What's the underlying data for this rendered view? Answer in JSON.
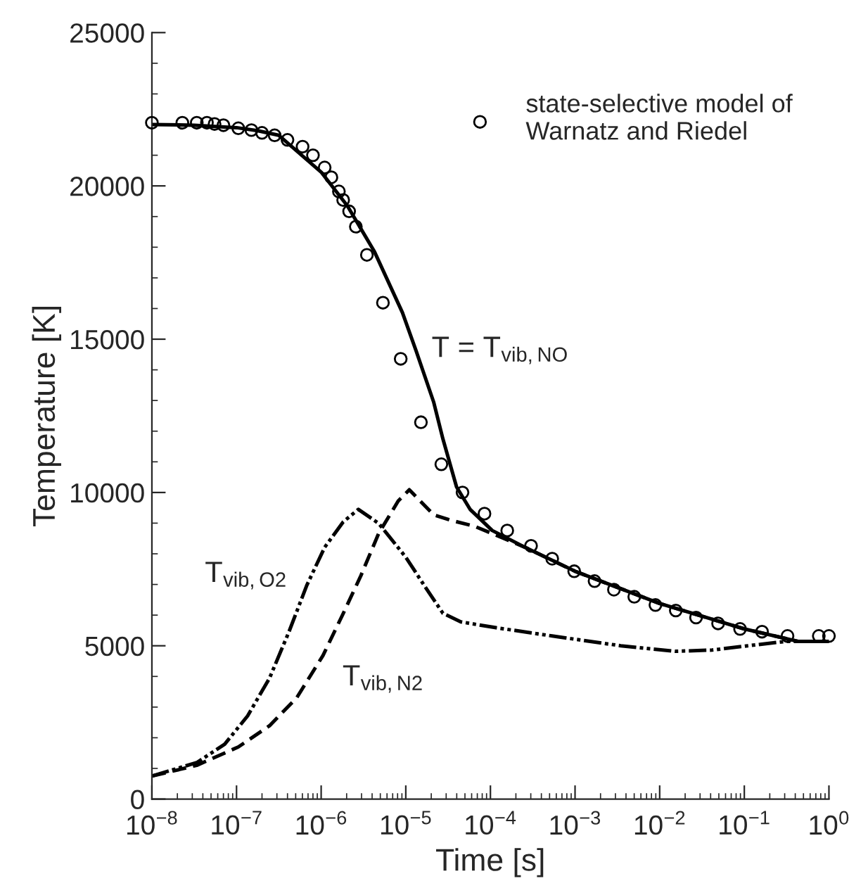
{
  "chart_data": {
    "type": "line",
    "xlabel": "Time [s]",
    "ylabel": "Temperature [K]",
    "log": "x",
    "xlim": [
      1e-08,
      1
    ],
    "ylim": [
      0,
      25000
    ],
    "xticks": [
      {
        "value": 1e-08,
        "label": "10$^{−8}$"
      },
      {
        "value": 1e-07,
        "label": "10$^{−7}$"
      },
      {
        "value": 1e-06,
        "label": "10$^{−6}$"
      },
      {
        "value": 1e-05,
        "label": "10$^{−5}$"
      },
      {
        "value": 0.0001,
        "label": "10$^{−4}$"
      },
      {
        "value": 0.001,
        "label": "10$^{−3}$"
      },
      {
        "value": 0.01,
        "label": "10$^{−2}$"
      },
      {
        "value": 0.1,
        "label": "10$^{−1}$"
      },
      {
        "value": 1,
        "label": "10$^{0}$"
      }
    ],
    "yticks": [
      0,
      5000,
      10000,
      15000,
      20000,
      25000
    ],
    "grid": false,
    "legend": "top right",
    "series": [
      {
        "name": "T = T$_{vib,NO}$",
        "color": "#000000",
        "line_style": "solid",
        "marker": "none",
        "x": [
          1e-08,
          3.16e-08,
          1e-07,
          1.78e-07,
          3.16e-07,
          1e-06,
          2.04e-06,
          4.27e-06,
          9.12e-06,
          1.32e-05,
          2.14e-05,
          2.75e-05,
          3.98e-05,
          5.75e-05,
          0.000105,
          0.000257,
          0.001,
          0.01,
          0.1,
          0.437,
          1
        ],
        "values": [
          22000,
          21980,
          21900,
          21800,
          21650,
          20450,
          19350,
          17850,
          15870,
          14630,
          12940,
          11740,
          10180,
          9450,
          8760,
          8210,
          7430,
          6380,
          5550,
          5140,
          5140
        ]
      },
      {
        "name": "T$_{vib,O2}$",
        "color": "#000000",
        "line_style": "dotted",
        "marker": "none",
        "x": [
          1e-08,
          3.39e-08,
          7.24e-08,
          1.35e-07,
          2.45e-07,
          4.17e-07,
          6.76e-07,
          1.1e-06,
          1.82e-06,
          2.75e-06,
          4.79e-06,
          1e-05,
          1.78e-05,
          2.75e-05,
          4.47e-05,
          0.00011,
          0.000537,
          0.00347,
          0.0155,
          0.0417,
          0.11,
          0.302,
          1
        ],
        "values": [
          750,
          1190,
          1790,
          2710,
          3940,
          5460,
          6970,
          8210,
          9040,
          9450,
          8990,
          7890,
          6830,
          6060,
          5780,
          5600,
          5320,
          5000,
          4820,
          4860,
          5000,
          5140,
          5140
        ]
      },
      {
        "name": "T$_{vib,N2}$",
        "color": "#000000",
        "line_style": "dashed",
        "marker": "none",
        "x": [
          1e-08,
          3.39e-08,
          1.05e-07,
          2.45e-07,
          5.13e-07,
          1.05e-06,
          1.82e-06,
          2.95e-06,
          4.79e-06,
          8.13e-06,
          1.1e-05,
          2.14e-05,
          3.55e-05,
          6.46e-05,
          0.000123,
          0.000257,
          0.001,
          0.01,
          0.1,
          0.437,
          1
        ],
        "values": [
          750,
          1100,
          1700,
          2390,
          3300,
          4680,
          6050,
          7290,
          8670,
          9720,
          10090,
          9270,
          9080,
          8900,
          8580,
          8210,
          7430,
          6380,
          5550,
          5140,
          5140
        ]
      },
      {
        "name": "state-selective model of\nWarnatz and Riedel",
        "type": "scatter",
        "color": "#000000",
        "marker": "circle",
        "x": [
          1e-08,
          2.29e-08,
          3.39e-08,
          4.47e-08,
          5.5e-08,
          7e-08,
          1.05e-07,
          1.5e-07,
          2e-07,
          2.82e-07,
          4e-07,
          6.03e-07,
          8e-07,
          1.1e-06,
          1.32e-06,
          1.62e-06,
          1.82e-06,
          2.14e-06,
          2.57e-06,
          3.47e-06,
          5.37e-06,
          8.71e-06,
          1.51e-05,
          2.63e-05,
          4.68e-05,
          8.51e-05,
          0.000158,
          0.000302,
          0.000537,
          0.000977,
          0.0017,
          0.00288,
          0.00501,
          0.00891,
          0.0155,
          0.0269,
          0.049,
          0.0891,
          0.162,
          0.324,
          0.759,
          1
        ],
        "values": [
          22060,
          22060,
          22060,
          22060,
          22020,
          21980,
          21880,
          21820,
          21730,
          21650,
          21500,
          21280,
          21000,
          20600,
          20280,
          19820,
          19540,
          19170,
          18670,
          17750,
          16190,
          14360,
          12290,
          10920,
          10000,
          9310,
          8760,
          8260,
          7840,
          7430,
          7110,
          6830,
          6600,
          6330,
          6150,
          5920,
          5730,
          5550,
          5460,
          5320,
          5320,
          5320
        ]
      }
    ]
  }
}
